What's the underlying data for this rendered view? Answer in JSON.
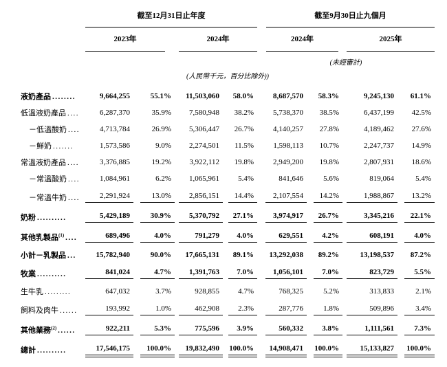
{
  "table": {
    "section_headers": [
      {
        "label": "截至12月31日止年度"
      },
      {
        "label": "截至9月30日止九個月"
      }
    ],
    "year_headers": [
      "2023年",
      "2024年",
      "2024年",
      "2025年"
    ],
    "unaudited_note": "(未經審計)",
    "unit_note": "(人民幣千元，百分比除外))",
    "rows": [
      {
        "label": "液奶產品",
        "sup": "",
        "dots": "........",
        "bold": true,
        "indent": false,
        "underline": "none",
        "values": [
          "9,664,255",
          "55.1%",
          "11,503,060",
          "58.0%",
          "8,687,570",
          "58.3%",
          "9,245,130",
          "61.1%"
        ]
      },
      {
        "label": "低溫液奶產品",
        "sup": "",
        "dots": "....",
        "bold": false,
        "indent": false,
        "underline": "none",
        "values": [
          "6,287,370",
          "35.9%",
          "7,580,948",
          "38.2%",
          "5,738,370",
          "38.5%",
          "6,437,199",
          "42.5%"
        ]
      },
      {
        "label": "－低溫酸奶",
        "sup": "",
        "dots": "....",
        "bold": false,
        "indent": true,
        "underline": "none",
        "values": [
          "4,713,784",
          "26.9%",
          "5,306,447",
          "26.7%",
          "4,140,257",
          "27.8%",
          "4,189,462",
          "27.6%"
        ]
      },
      {
        "label": "－鮮奶",
        "sup": "",
        "dots": ".......",
        "bold": false,
        "indent": true,
        "underline": "none",
        "values": [
          "1,573,586",
          "9.0%",
          "2,274,501",
          "11.5%",
          "1,598,113",
          "10.7%",
          "2,247,737",
          "14.9%"
        ]
      },
      {
        "label": "常溫液奶產品",
        "sup": "",
        "dots": "....",
        "bold": false,
        "indent": false,
        "underline": "none",
        "values": [
          "3,376,885",
          "19.2%",
          "3,922,112",
          "19.8%",
          "2,949,200",
          "19.8%",
          "2,807,931",
          "18.6%"
        ]
      },
      {
        "label": "－常溫酸奶",
        "sup": "",
        "dots": "....",
        "bold": false,
        "indent": true,
        "underline": "none",
        "values": [
          "1,084,961",
          "6.2%",
          "1,065,961",
          "5.4%",
          "841,646",
          "5.6%",
          "819,064",
          "5.4%"
        ]
      },
      {
        "label": "－常溫牛奶",
        "sup": "",
        "dots": "....",
        "bold": false,
        "indent": true,
        "underline": "single",
        "values": [
          "2,291,924",
          "13.0%",
          "2,856,151",
          "14.4%",
          "2,107,554",
          "14.2%",
          "1,988,867",
          "13.2%"
        ]
      },
      {
        "label": "奶粉",
        "sup": "",
        "dots": "..........",
        "bold": true,
        "indent": false,
        "underline": "single",
        "values": [
          "5,429,189",
          "30.9%",
          "5,370,792",
          "27.1%",
          "3,974,917",
          "26.7%",
          "3,345,216",
          "22.1%"
        ]
      },
      {
        "label": "其他乳製品",
        "sup": "(1)",
        "dots": "....",
        "bold": true,
        "indent": false,
        "underline": "single",
        "values": [
          "689,496",
          "4.0%",
          "791,279",
          "4.0%",
          "629,551",
          "4.2%",
          "608,191",
          "4.0%"
        ]
      },
      {
        "label": "小計－乳製品",
        "sup": "",
        "dots": "...",
        "bold": true,
        "indent": false,
        "underline": "none",
        "values": [
          "15,782,940",
          "90.0%",
          "17,665,131",
          "89.1%",
          "13,292,038",
          "89.2%",
          "13,198,537",
          "87.2%"
        ]
      },
      {
        "label": "牧業",
        "sup": "",
        "dots": "..........",
        "bold": true,
        "indent": false,
        "underline": "single",
        "values": [
          "841,024",
          "4.7%",
          "1,391,763",
          "7.0%",
          "1,056,101",
          "7.0%",
          "823,729",
          "5.5%"
        ]
      },
      {
        "label": "生牛乳",
        "sup": "",
        "dots": ".........",
        "bold": false,
        "indent": false,
        "underline": "none",
        "values": [
          "647,032",
          "3.7%",
          "928,855",
          "4.7%",
          "768,325",
          "5.2%",
          "313,833",
          "2.1%"
        ]
      },
      {
        "label": "飼料及肉牛",
        "sup": "",
        "dots": "......",
        "bold": false,
        "indent": false,
        "underline": "single",
        "values": [
          "193,992",
          "1.0%",
          "462,908",
          "2.3%",
          "287,776",
          "1.8%",
          "509,896",
          "3.4%"
        ]
      },
      {
        "label": "其他業務",
        "sup": "(2)",
        "dots": "......",
        "bold": true,
        "indent": false,
        "underline": "single",
        "values": [
          "922,211",
          "5.3%",
          "775,596",
          "3.9%",
          "560,332",
          "3.8%",
          "1,111,561",
          "7.3%"
        ]
      },
      {
        "label": "總計",
        "sup": "",
        "dots": "..........",
        "bold": true,
        "indent": false,
        "underline": "double",
        "values": [
          "17,546,175",
          "100.0%",
          "19,832,490",
          "100.0%",
          "14,908,471",
          "100.0%",
          "15,133,827",
          "100.0%"
        ]
      }
    ]
  }
}
